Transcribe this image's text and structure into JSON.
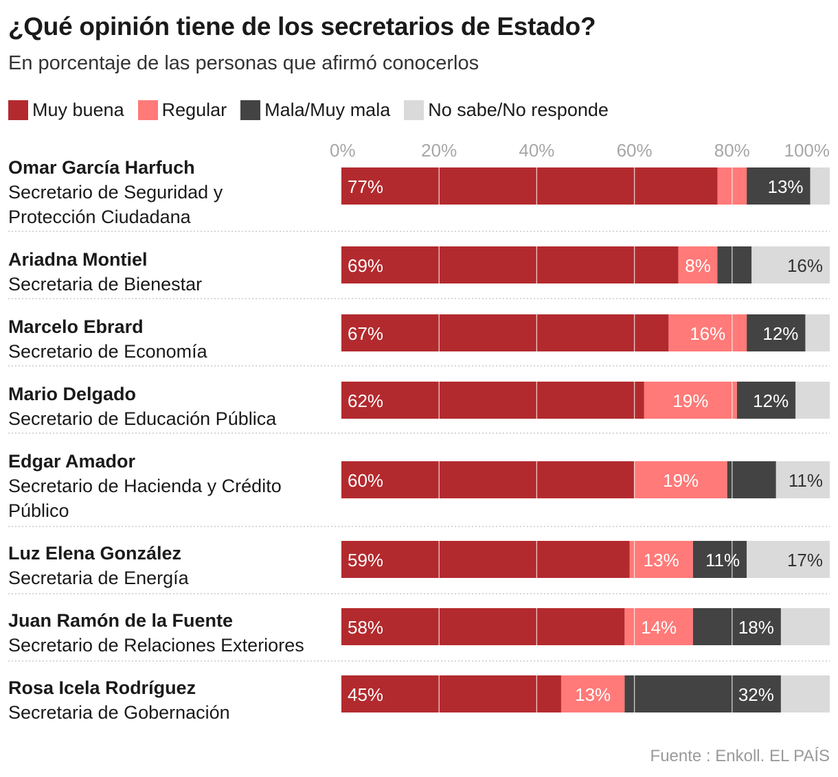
{
  "title": "¿Qué opinión tiene de los secretarios de Estado?",
  "subtitle": "En porcentaje de las personas que afirmó conocerlos",
  "source": "Fuente : Enkoll. EL PAÍS",
  "colors": {
    "muy_buena": "#b32a2e",
    "regular": "#ff7a78",
    "mala": "#434343",
    "no_sabe": "#dadada",
    "grid": "#ffffff",
    "axis_text": "#a7a7a7",
    "separator": "#c9c9c9"
  },
  "legend": [
    {
      "label": "Muy buena",
      "color": "#b32a2e"
    },
    {
      "label": "Regular",
      "color": "#ff7a78"
    },
    {
      "label": "Mala/Muy mala",
      "color": "#434343"
    },
    {
      "label": "No sabe/No responde",
      "color": "#dadada"
    }
  ],
  "chart_data": {
    "type": "bar",
    "orientation": "horizontal",
    "stacked": true,
    "title": "¿Qué opinión tiene de los secretarios de Estado?",
    "subtitle": "En porcentaje de las personas que afirmó conocerlos",
    "xlim": [
      0,
      100
    ],
    "x_ticks": [
      "0%",
      "20%",
      "40%",
      "60%",
      "80%",
      "100%"
    ],
    "x_tick_values": [
      0,
      20,
      40,
      60,
      80,
      100
    ],
    "series_names": [
      "Muy buena",
      "Regular",
      "Mala/Muy mala",
      "No sabe/No responde"
    ],
    "rows": [
      {
        "name": "Omar García Harfuch",
        "role": [
          "Secretario de Seguridad y",
          "Protección Ciudadana"
        ],
        "values": [
          77,
          6,
          13,
          4
        ],
        "labels": [
          "77%",
          "",
          "13%",
          ""
        ]
      },
      {
        "name": "Ariadna Montiel",
        "role": [
          "Secretaria de Bienestar"
        ],
        "values": [
          69,
          8,
          7,
          16
        ],
        "labels": [
          "69%",
          "8%",
          "",
          "16%"
        ]
      },
      {
        "name": "Marcelo Ebrard",
        "role": [
          "Secretario de Economía"
        ],
        "values": [
          67,
          16,
          12,
          5
        ],
        "labels": [
          "67%",
          "16%",
          "12%",
          ""
        ]
      },
      {
        "name": "Mario Delgado",
        "role": [
          "Secretario de Educación Pública"
        ],
        "values": [
          62,
          19,
          12,
          7
        ],
        "labels": [
          "62%",
          "19%",
          "12%",
          ""
        ]
      },
      {
        "name": "Edgar Amador",
        "role": [
          "Secretario de Hacienda y Crédito",
          "Público"
        ],
        "values": [
          60,
          19,
          10,
          11
        ],
        "labels": [
          "60%",
          "19%",
          "",
          "11%"
        ]
      },
      {
        "name": "Luz Elena González",
        "role": [
          "Secretaria de Energía"
        ],
        "values": [
          59,
          13,
          11,
          17
        ],
        "labels": [
          "59%",
          "13%",
          "11%",
          "17%"
        ]
      },
      {
        "name": "Juan Ramón de la Fuente",
        "role": [
          "Secretario de Relaciones Exteriores"
        ],
        "values": [
          58,
          14,
          18,
          10
        ],
        "labels": [
          "58%",
          "14%",
          "18%",
          ""
        ]
      },
      {
        "name": "Rosa Icela Rodríguez",
        "role": [
          "Secretaria de Gobernación"
        ],
        "values": [
          45,
          13,
          32,
          10
        ],
        "labels": [
          "45%",
          "13%",
          "32%",
          ""
        ]
      }
    ]
  }
}
